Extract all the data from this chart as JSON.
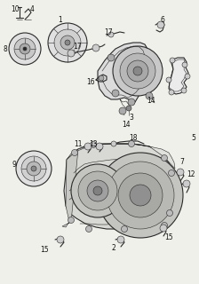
{
  "bg_color": "#f0f0eb",
  "line_color": "#2a2a2a",
  "label_color": "#111111",
  "figsize": [
    2.24,
    3.2
  ],
  "dpi": 100,
  "lw_main": 0.8,
  "lw_thin": 0.4,
  "lw_thick": 1.2,
  "label_fs": 5.5
}
